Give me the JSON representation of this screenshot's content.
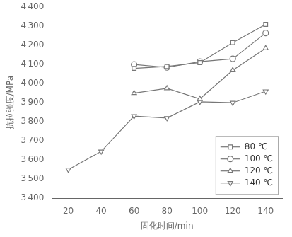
{
  "chart_data": {
    "type": "line",
    "x": [
      20,
      40,
      60,
      80,
      100,
      120,
      140
    ],
    "series": [
      {
        "name": "80 ℃",
        "color": "#777777",
        "marker": "square",
        "values": [
          null,
          null,
          4080,
          4090,
          4110,
          4215,
          4310
        ]
      },
      {
        "name": "100 ℃",
        "color": "#777777",
        "marker": "circle",
        "values": [
          null,
          null,
          4100,
          4085,
          4115,
          4130,
          4265
        ]
      },
      {
        "name": "120 ℃",
        "color": "#777777",
        "marker": "triangle",
        "values": [
          null,
          null,
          3950,
          3975,
          3920,
          4070,
          4185
        ]
      },
      {
        "name": "140 ℃",
        "color": "#777777",
        "marker": "triangle-down",
        "values": [
          3550,
          3645,
          3830,
          3820,
          3905,
          3900,
          3960
        ]
      }
    ],
    "xlabel": "固化时间/min",
    "ylabel": "抗拉强度/MPa",
    "xlim": [
      10,
      150
    ],
    "ylim": [
      3400,
      4400
    ],
    "xticks": [
      20,
      40,
      60,
      80,
      100,
      120,
      140
    ],
    "yticks": [
      {
        "value": 3400,
        "label": "3 400"
      },
      {
        "value": 3500,
        "label": "3 500"
      },
      {
        "value": 3600,
        "label": "3 600"
      },
      {
        "value": 3700,
        "label": "3 700"
      },
      {
        "value": 3800,
        "label": "3 800"
      },
      {
        "value": 3900,
        "label": "3 900"
      },
      {
        "value": 4000,
        "label": "4 000"
      },
      {
        "value": 4100,
        "label": "4 100"
      },
      {
        "value": 4200,
        "label": "4 200"
      },
      {
        "value": 4300,
        "label": "4 300"
      },
      {
        "value": 4400,
        "label": "4 400"
      }
    ],
    "grid": false,
    "legend": "lower right"
  }
}
